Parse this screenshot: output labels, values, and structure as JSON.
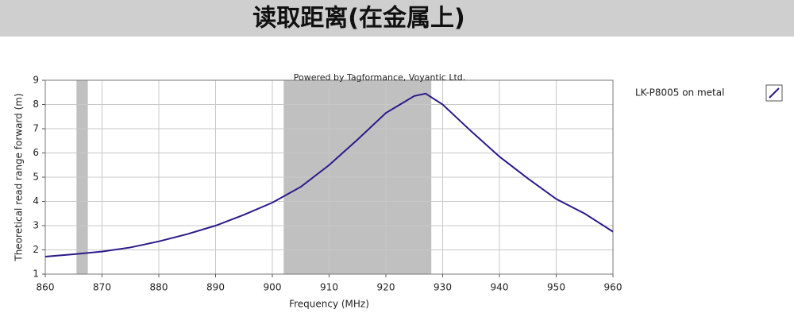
{
  "chart_data": {
    "type": "line",
    "title": "读取距离(在金属上)",
    "annotation": "Powered by Tagformance, Voyantic Ltd.",
    "xlabel": "Frequency (MHz)",
    "ylabel": "Theoretical read range forward (m)",
    "x": [
      860,
      865,
      870,
      875,
      880,
      885,
      890,
      895,
      900,
      905,
      910,
      915,
      920,
      925,
      927,
      930,
      935,
      940,
      945,
      950,
      955,
      960
    ],
    "series": [
      {
        "name": "LK-P8005 on metal",
        "color": "#2a1a8a",
        "values": [
          1.72,
          1.82,
          1.93,
          2.1,
          2.35,
          2.65,
          3.0,
          3.45,
          3.95,
          4.6,
          5.5,
          6.55,
          7.65,
          8.35,
          8.45,
          8.0,
          6.9,
          5.85,
          4.95,
          4.1,
          3.5,
          2.75
        ]
      }
    ],
    "bands": [
      [
        865.5,
        867.5
      ],
      [
        902,
        928
      ]
    ],
    "band_color": "#c0c0c0",
    "xlim": [
      860,
      960
    ],
    "xticks": [
      860,
      870,
      880,
      890,
      900,
      910,
      920,
      930,
      940,
      950,
      960
    ],
    "ylim": [
      1,
      9
    ],
    "yticks": [
      1,
      2,
      3,
      4,
      5,
      6,
      7,
      8,
      9
    ],
    "grid": true,
    "legend": "right"
  }
}
